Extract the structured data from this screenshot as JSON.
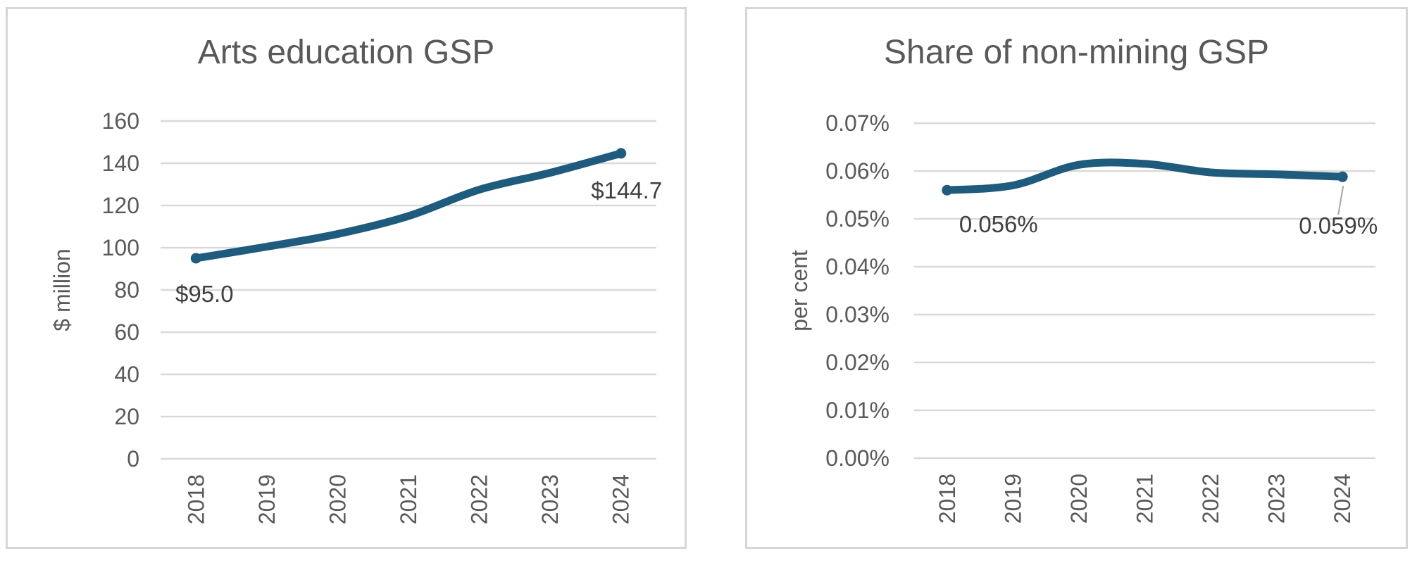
{
  "chart_data": [
    {
      "type": "line",
      "title": "Arts education GSP",
      "ylabel": "$ million",
      "xlabel": "",
      "categories": [
        "2018",
        "2019",
        "2020",
        "2021",
        "2022",
        "2023",
        "2024"
      ],
      "values": [
        95.0,
        100.5,
        106.5,
        115.0,
        127.5,
        135.5,
        144.7
      ],
      "ylim": [
        0,
        160
      ],
      "ytick_labels": [
        "0",
        "20",
        "40",
        "60",
        "80",
        "100",
        "120",
        "140",
        "160"
      ],
      "point_labels": {
        "first": "$95.0",
        "last": "$144.7"
      },
      "x_tick_rotation": -90,
      "grid": true,
      "legend": false,
      "smoothed": true,
      "line_color": "#1e5b7d",
      "grid_color": "#d9d9d9",
      "tick_color": "#595959",
      "label_color": "#404040"
    },
    {
      "type": "line",
      "title": "Share of non-mining GSP",
      "ylabel": "per cent",
      "xlabel": "",
      "categories": [
        "2018",
        "2019",
        "2020",
        "2021",
        "2022",
        "2023",
        "2024"
      ],
      "values": [
        0.056,
        0.057,
        0.0613,
        0.0615,
        0.0597,
        0.0593,
        0.0588
      ],
      "ylim": [
        0,
        0.07
      ],
      "ytick_labels": [
        "0.00%",
        "0.01%",
        "0.02%",
        "0.03%",
        "0.04%",
        "0.05%",
        "0.06%",
        "0.07%"
      ],
      "point_labels": {
        "first": "0.056%",
        "last": "0.059%"
      },
      "x_tick_rotation": -90,
      "grid": true,
      "legend": false,
      "smoothed": true,
      "has_leader_line": true,
      "leader_color": "#a6a6a6",
      "line_color": "#1e5b7d",
      "grid_color": "#d9d9d9",
      "tick_color": "#595959",
      "label_color": "#404040"
    }
  ]
}
